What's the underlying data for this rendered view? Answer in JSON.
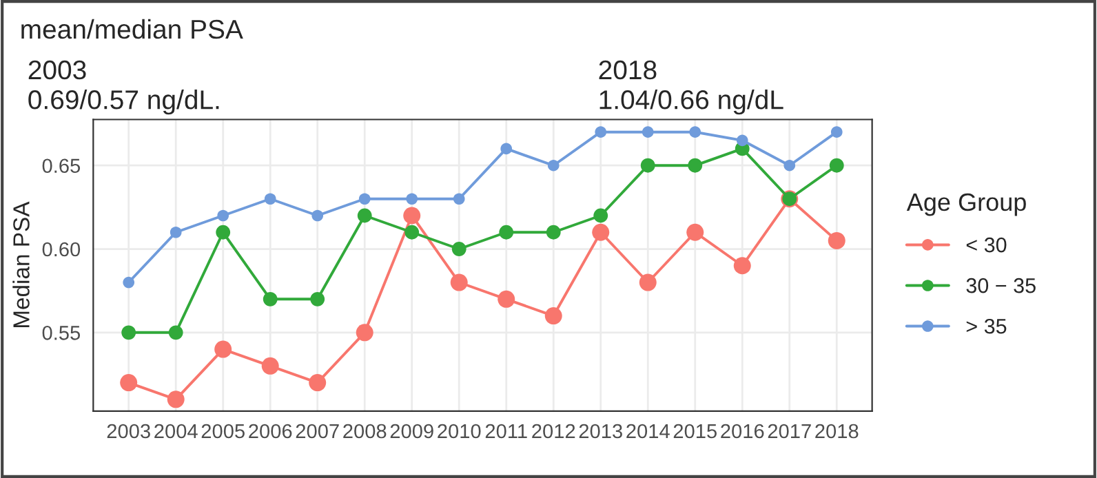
{
  "chart_data": {
    "type": "line",
    "title": "mean/median PSA",
    "annotations": [
      "2003\n0.69/0.57 ng/dL.",
      "2018\n1.04/0.66 ng/dL"
    ],
    "ylabel": "Median PSA",
    "legend_title": "Age Group",
    "x": [
      2003,
      2004,
      2005,
      2006,
      2007,
      2008,
      2009,
      2010,
      2011,
      2012,
      2013,
      2014,
      2015,
      2016,
      2017,
      2018
    ],
    "series": [
      {
        "name": "< 30",
        "color": "#f8766d",
        "values": [
          0.52,
          0.51,
          0.54,
          0.53,
          0.52,
          0.55,
          0.62,
          0.58,
          0.57,
          0.56,
          0.61,
          0.58,
          0.61,
          0.59,
          0.63,
          0.605
        ]
      },
      {
        "name": "30 − 35",
        "color": "#31a93a",
        "values": [
          0.55,
          0.55,
          0.61,
          0.57,
          0.57,
          0.62,
          0.61,
          0.6,
          0.61,
          0.61,
          0.62,
          0.65,
          0.65,
          0.66,
          0.63,
          0.65
        ]
      },
      {
        "name": "> 35",
        "color": "#6f9bdb",
        "values": [
          0.58,
          0.61,
          0.62,
          0.63,
          0.62,
          0.63,
          0.63,
          0.63,
          0.66,
          0.65,
          0.67,
          0.67,
          0.67,
          0.665,
          0.65,
          0.67
        ]
      }
    ],
    "xlim": [
      2002.25,
      2018.75
    ],
    "ylim": [
      0.503,
      0.6775
    ],
    "xticks": [
      2003,
      2004,
      2005,
      2006,
      2007,
      2008,
      2009,
      2010,
      2011,
      2012,
      2013,
      2014,
      2015,
      2016,
      2017,
      2018
    ],
    "yticks": [
      {
        "value": 0.55,
        "label": "0.55"
      },
      {
        "value": 0.6,
        "label": "0.60"
      },
      {
        "value": 0.65,
        "label": "0.65"
      }
    ],
    "grid": true,
    "legend": "right",
    "marker": "circle",
    "line_style": "solid"
  }
}
